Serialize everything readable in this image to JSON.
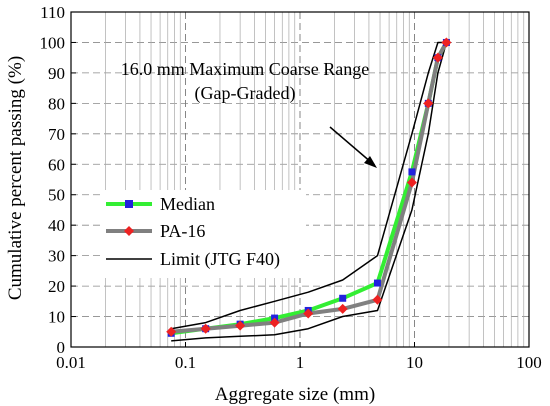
{
  "chart_data": {
    "type": "line",
    "xscale": "log",
    "xlim": [
      0.01,
      100
    ],
    "ylim": [
      0,
      110
    ],
    "xticks": [
      "0.01",
      "0.1",
      "1",
      "10",
      "100"
    ],
    "yticks": [
      "0",
      "10",
      "20",
      "30",
      "40",
      "50",
      "60",
      "70",
      "80",
      "90",
      "100",
      "110"
    ],
    "xlabel": "Aggregate size (mm)",
    "ylabel": "Cumulative percent passing (%)",
    "grid": true,
    "annotation": {
      "line1": "16.0 mm Maximum Coarse  Range",
      "line2": "(Gap-Graded)"
    },
    "legend_position": "left-middle",
    "series": [
      {
        "name": "Median",
        "color": "#33ee33",
        "marker": "square",
        "marker_color": "#2222dd",
        "x": [
          0.075,
          0.15,
          0.3,
          0.6,
          1.18,
          2.36,
          4.75,
          9.5,
          13.2,
          16,
          19
        ],
        "y": [
          4.5,
          6,
          7.5,
          9.5,
          12,
          16,
          21,
          57.5,
          80,
          95,
          100
        ]
      },
      {
        "name": "PA-16",
        "color": "#808080",
        "marker": "diamond",
        "marker_color": "#ee2222",
        "x": [
          0.075,
          0.15,
          0.3,
          0.6,
          1.18,
          2.36,
          4.75,
          9.5,
          13.2,
          16,
          19
        ],
        "y": [
          5,
          6,
          7,
          8,
          11,
          12.5,
          15.5,
          54,
          80,
          95,
          100
        ]
      },
      {
        "name": "Limit (JTG F40)",
        "color": "#000000",
        "marker": "none",
        "x": [
          0.075,
          0.15,
          0.3,
          0.6,
          1.18,
          2.36,
          4.75,
          9.5,
          13.2,
          16,
          19
        ],
        "y": [
          6,
          8,
          12,
          15,
          18,
          22,
          30,
          70,
          90,
          100,
          100
        ]
      },
      {
        "name": "",
        "color": "#000000",
        "marker": "none",
        "x": [
          0.075,
          0.15,
          0.3,
          0.6,
          1.18,
          2.36,
          4.75,
          9.5,
          13.2,
          16,
          19
        ],
        "y": [
          2,
          3,
          3.5,
          4,
          6,
          10,
          12,
          45,
          70,
          90,
          100
        ]
      }
    ]
  }
}
